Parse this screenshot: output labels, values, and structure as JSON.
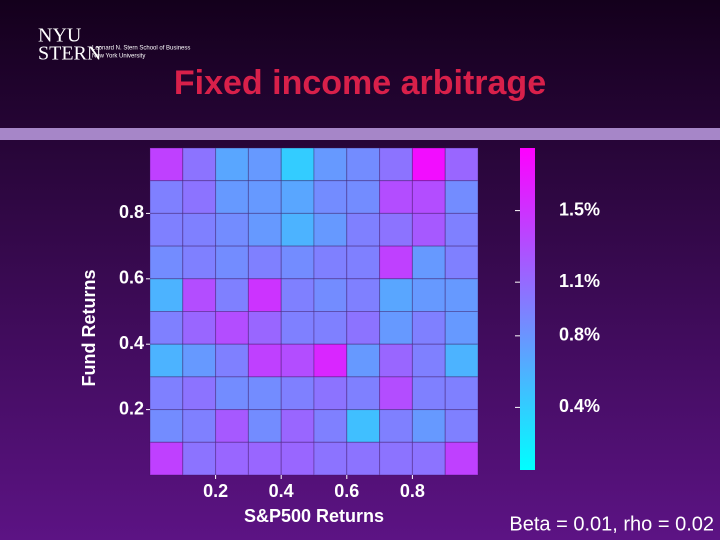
{
  "header": {
    "logo_top": "NYU",
    "logo_bottom": "STERN",
    "school": "Leonard N. Stern School of Business",
    "university": "New York University"
  },
  "chart_data": {
    "type": "heatmap",
    "title": "Fixed income arbitrage",
    "x_label": "S&P500 Returns",
    "y_label": "Fund Returns",
    "annotation": "Beta = 0.01, rho = 0.02",
    "xlim": [
      0,
      1
    ],
    "ylim": [
      0,
      1
    ],
    "xticks": [
      0.2,
      0.4,
      0.6,
      0.8
    ],
    "yticks": [
      0.2,
      0.4,
      0.6,
      0.8
    ],
    "z": [
      [
        1.4,
        1.04,
        0.68,
        0.77,
        0.41,
        0.77,
        0.86,
        1.04,
        1.76,
        1.13
      ],
      [
        0.95,
        1.04,
        0.77,
        0.77,
        0.68,
        0.86,
        0.86,
        1.31,
        1.31,
        0.86
      ],
      [
        0.95,
        0.95,
        0.86,
        0.77,
        0.59,
        0.77,
        0.95,
        1.04,
        1.22,
        0.95
      ],
      [
        0.86,
        0.95,
        0.86,
        0.95,
        0.86,
        0.95,
        0.95,
        1.4,
        0.77,
        0.95
      ],
      [
        0.59,
        1.31,
        0.95,
        1.49,
        0.95,
        0.86,
        0.95,
        0.68,
        0.77,
        0.77
      ],
      [
        0.95,
        1.13,
        1.31,
        1.13,
        0.95,
        0.95,
        1.04,
        0.77,
        0.95,
        0.77
      ],
      [
        0.59,
        0.77,
        0.95,
        1.4,
        1.31,
        1.58,
        0.77,
        1.13,
        0.95,
        0.59
      ],
      [
        0.95,
        1.04,
        0.86,
        0.86,
        0.95,
        1.04,
        0.95,
        1.31,
        0.95,
        0.95
      ],
      [
        0.86,
        0.95,
        1.22,
        0.86,
        1.13,
        0.95,
        0.5,
        0.95,
        0.77,
        0.95
      ],
      [
        1.4,
        1.04,
        1.13,
        1.13,
        1.13,
        1.04,
        1.04,
        1.04,
        1.04,
        1.4
      ]
    ],
    "colormap": [
      "#00ffff",
      "#ff00ff"
    ],
    "colorbar_lim": [
      0.05,
      1.85
    ],
    "colorbar_ticks": [
      {
        "value": 0.4,
        "label": "0.4%"
      },
      {
        "value": 0.8,
        "label": "0.8%"
      },
      {
        "value": 1.1,
        "label": "1.1%"
      },
      {
        "value": 1.5,
        "label": "1.5%"
      }
    ]
  }
}
